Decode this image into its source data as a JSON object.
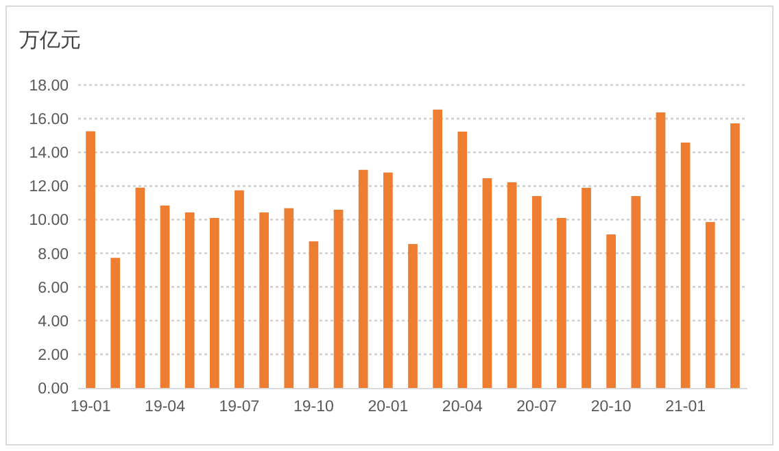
{
  "chart_data": {
    "type": "bar",
    "ylabel": "万亿元",
    "categories": [
      "19-01",
      null,
      null,
      "19-04",
      null,
      null,
      "19-07",
      null,
      null,
      "19-10",
      null,
      null,
      "20-01",
      null,
      null,
      "20-04",
      null,
      null,
      "20-07",
      null,
      null,
      "20-10",
      null,
      null,
      "21-01",
      null,
      null
    ],
    "values": [
      15.25,
      7.73,
      11.9,
      10.84,
      10.43,
      10.1,
      11.74,
      10.43,
      10.68,
      8.71,
      10.59,
      12.96,
      12.8,
      8.55,
      16.54,
      15.23,
      12.46,
      12.22,
      11.4,
      10.1,
      11.89,
      9.12,
      11.4,
      16.37,
      14.58,
      9.86,
      15.72
    ],
    "color": "#ed7d31",
    "ylim": [
      0,
      18
    ],
    "yticks": [
      {
        "value": 0,
        "label": "0.00"
      },
      {
        "value": 2,
        "label": "2.00"
      },
      {
        "value": 4,
        "label": "4.00"
      },
      {
        "value": 6,
        "label": "6.00"
      },
      {
        "value": 8,
        "label": "8.00"
      },
      {
        "value": 10,
        "label": "10.00"
      },
      {
        "value": 12,
        "label": "12.00"
      },
      {
        "value": 14,
        "label": "14.00"
      },
      {
        "value": 16,
        "label": "16.00"
      },
      {
        "value": 18,
        "label": "18.00"
      }
    ],
    "grid": "y"
  }
}
